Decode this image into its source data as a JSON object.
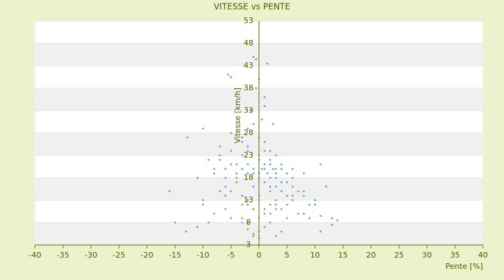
{
  "chart_data": {
    "type": "scatter",
    "title": "VITESSE vs PENTE",
    "x_label": "Pente [%]",
    "y_label": "Vitesse [km/h]",
    "xlim": [
      -40,
      40
    ],
    "xticks": [
      -40,
      -35,
      -30,
      -25,
      -20,
      -15,
      -10,
      -5,
      0,
      5,
      10,
      15,
      20,
      25,
      30,
      35,
      40
    ],
    "ylim": [
      3,
      53
    ],
    "yticks": [
      3,
      8,
      13,
      18,
      23,
      28,
      33,
      38,
      43,
      48,
      53
    ],
    "grid": true,
    "series": [
      {
        "color": "#3a8bd6",
        "x": [
          -16,
          -15,
          -13,
          -12.8,
          -10,
          -5.5,
          -5,
          -1,
          -0.5,
          1.5,
          0,
          -0.5,
          1,
          14,
          13,
          12,
          11,
          11,
          13,
          -8,
          -7,
          -6,
          -5,
          -4,
          -3,
          -2,
          -1,
          0,
          1,
          2,
          3,
          4,
          5,
          6,
          7,
          8,
          9,
          -6,
          -4,
          -3,
          -2,
          -1,
          0,
          1,
          2,
          3,
          4,
          5,
          6,
          -9,
          -7,
          -5,
          -3,
          -2,
          -1,
          0,
          1,
          2,
          3,
          4,
          6,
          8,
          10,
          -4,
          -3,
          -2,
          -1,
          0,
          0.5,
          1,
          1.5,
          2,
          2.5,
          3,
          -2,
          -1,
          0,
          1,
          2,
          3,
          -1.5,
          0.5,
          2.5,
          -11,
          -10,
          -8,
          -5,
          -3,
          0,
          3,
          5,
          7,
          9,
          10,
          -2,
          0,
          2,
          4,
          6,
          8,
          -6,
          -3,
          1
        ],
        "y": [
          15,
          8,
          6,
          27,
          29,
          41,
          40.5,
          45,
          44.5,
          43.5,
          40,
          38,
          36,
          8.5,
          9,
          16,
          9.5,
          6,
          7.5,
          20,
          22,
          18,
          24,
          21,
          23,
          25,
          19,
          22,
          20,
          21,
          18,
          17,
          19,
          16,
          15,
          14,
          12,
          16,
          17,
          14,
          19,
          16,
          18,
          17,
          15,
          16,
          15,
          14,
          13,
          22,
          25,
          21,
          27,
          29,
          30,
          27,
          26,
          24,
          23,
          20,
          18,
          15,
          13,
          19,
          20,
          21,
          20,
          19,
          20,
          21,
          19,
          18,
          20,
          19,
          12,
          11,
          13,
          11,
          10,
          12,
          33,
          31,
          30,
          18,
          13,
          10,
          9,
          8,
          9,
          11,
          12,
          10,
          9,
          12,
          24,
          23,
          22,
          21,
          20,
          19,
          14,
          26,
          34
        ]
      },
      {
        "color": "#8a8a20",
        "x": [
          -5,
          -7,
          11,
          -6,
          -4,
          -3,
          -2,
          -1,
          0,
          1,
          2,
          3,
          4,
          5,
          -3,
          -2,
          -1,
          0,
          1,
          2,
          3,
          4,
          6,
          8,
          -5,
          -4,
          -2,
          0,
          2,
          -8,
          -7,
          -6,
          -9,
          -10,
          -11,
          3,
          5,
          1,
          -1,
          -3
        ],
        "y": [
          28,
          23,
          21,
          20,
          18,
          9,
          8,
          5,
          6,
          7,
          8,
          5,
          6,
          9,
          12,
          13,
          11,
          4.5,
          10,
          12,
          13,
          11,
          14,
          10,
          15,
          17,
          6.5,
          14,
          16,
          19,
          15,
          11,
          8,
          12,
          7,
          20,
          17,
          24,
          5.5,
          27
        ]
      }
    ]
  }
}
